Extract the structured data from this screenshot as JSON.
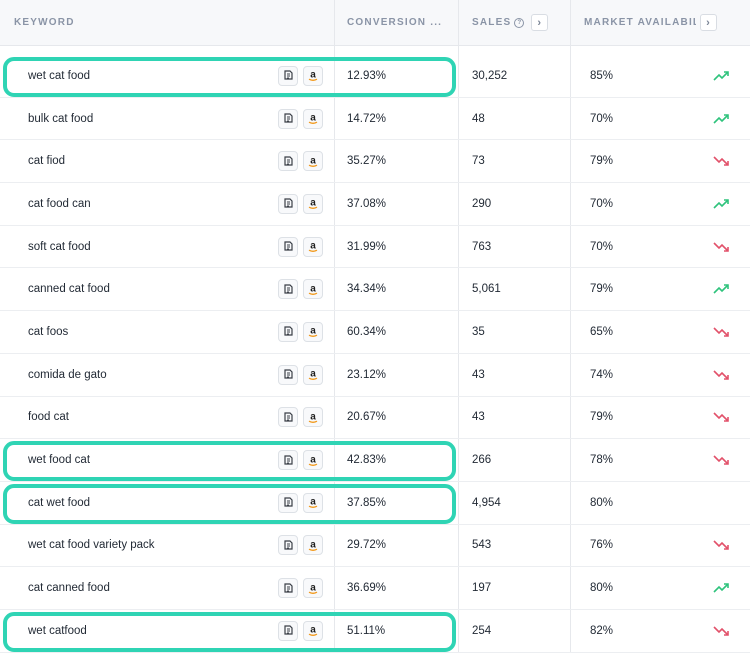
{
  "header": {
    "keyword": "KEYWORD",
    "conversion": "CONVERSION ...",
    "sales": "SALES",
    "sales_info": "?",
    "availability": "MARKET AVAILABILITY",
    "next_glyph": "›"
  },
  "colors": {
    "highlight": "#2fd4b4",
    "trend_up": "#2ec37c",
    "trend_down": "#e2516a"
  },
  "rows": [
    {
      "keyword": "wet cat food",
      "conversion": "12.93%",
      "sales": "30,252",
      "availability": "85%",
      "trend": "up",
      "highlighted": true
    },
    {
      "keyword": "bulk cat food",
      "conversion": "14.72%",
      "sales": "48",
      "availability": "70%",
      "trend": "up",
      "highlighted": false
    },
    {
      "keyword": "cat fiod",
      "conversion": "35.27%",
      "sales": "73",
      "availability": "79%",
      "trend": "down",
      "highlighted": false
    },
    {
      "keyword": "cat food can",
      "conversion": "37.08%",
      "sales": "290",
      "availability": "70%",
      "trend": "up",
      "highlighted": false
    },
    {
      "keyword": "soft cat food",
      "conversion": "31.99%",
      "sales": "763",
      "availability": "70%",
      "trend": "down",
      "highlighted": false
    },
    {
      "keyword": "canned cat food",
      "conversion": "34.34%",
      "sales": "5,061",
      "availability": "79%",
      "trend": "up",
      "highlighted": false
    },
    {
      "keyword": "cat foos",
      "conversion": "60.34%",
      "sales": "35",
      "availability": "65%",
      "trend": "down",
      "highlighted": false
    },
    {
      "keyword": "comida de gato",
      "conversion": "23.12%",
      "sales": "43",
      "availability": "74%",
      "trend": "down",
      "highlighted": false
    },
    {
      "keyword": "food cat",
      "conversion": "20.67%",
      "sales": "43",
      "availability": "79%",
      "trend": "down",
      "highlighted": false
    },
    {
      "keyword": "wet food cat",
      "conversion": "42.83%",
      "sales": "266",
      "availability": "78%",
      "trend": "down",
      "highlighted": true
    },
    {
      "keyword": "cat wet food",
      "conversion": "37.85%",
      "sales": "4,954",
      "availability": "80%",
      "trend": "none",
      "highlighted": true
    },
    {
      "keyword": "wet cat food variety pack",
      "conversion": "29.72%",
      "sales": "543",
      "availability": "76%",
      "trend": "down",
      "highlighted": false
    },
    {
      "keyword": "cat canned food",
      "conversion": "36.69%",
      "sales": "197",
      "availability": "80%",
      "trend": "up",
      "highlighted": false
    },
    {
      "keyword": "wet catfood",
      "conversion": "51.11%",
      "sales": "254",
      "availability": "82%",
      "trend": "down",
      "highlighted": true
    }
  ],
  "row_icons": [
    "research-tool-icon",
    "amazon-icon"
  ]
}
